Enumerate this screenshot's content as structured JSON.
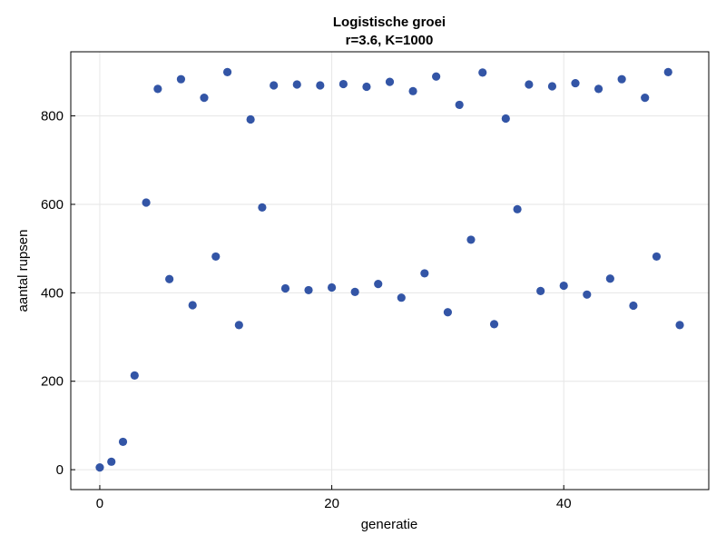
{
  "chart_data": {
    "type": "scatter",
    "title": "Logistische groei",
    "subtitle": "r=3.6, K=1000",
    "xlabel": "generatie",
    "ylabel": "aantal rupsen",
    "xlim": [
      -2.5,
      52.5
    ],
    "ylim": [
      -45,
      945
    ],
    "xticks": [
      0,
      20,
      40
    ],
    "yticks": [
      0,
      200,
      400,
      600,
      800
    ],
    "grid": true,
    "marker_color": "#3355a6",
    "series": [
      {
        "x": [
          0,
          1,
          2,
          3,
          4,
          5,
          6,
          7,
          8,
          9,
          10,
          11,
          12,
          13,
          14,
          15,
          16,
          17,
          18,
          19,
          20,
          21,
          22,
          23,
          24,
          25,
          26,
          27,
          28,
          29,
          30,
          31,
          32,
          33,
          34,
          35,
          36,
          37,
          38,
          39,
          40,
          41,
          42,
          43,
          44,
          45,
          46,
          47,
          48,
          49,
          50
        ],
        "values": [
          5,
          18,
          63,
          213,
          604,
          861,
          431,
          883,
          372,
          841,
          482,
          899,
          327,
          792,
          593,
          869,
          410,
          871,
          406,
          869,
          412,
          872,
          402,
          866,
          420,
          877,
          389,
          856,
          444,
          889,
          356,
          825,
          520,
          898,
          329,
          794,
          589,
          871,
          404,
          867,
          416,
          874,
          396,
          861,
          432,
          883,
          371,
          841,
          482,
          899,
          327
        ]
      }
    ]
  }
}
